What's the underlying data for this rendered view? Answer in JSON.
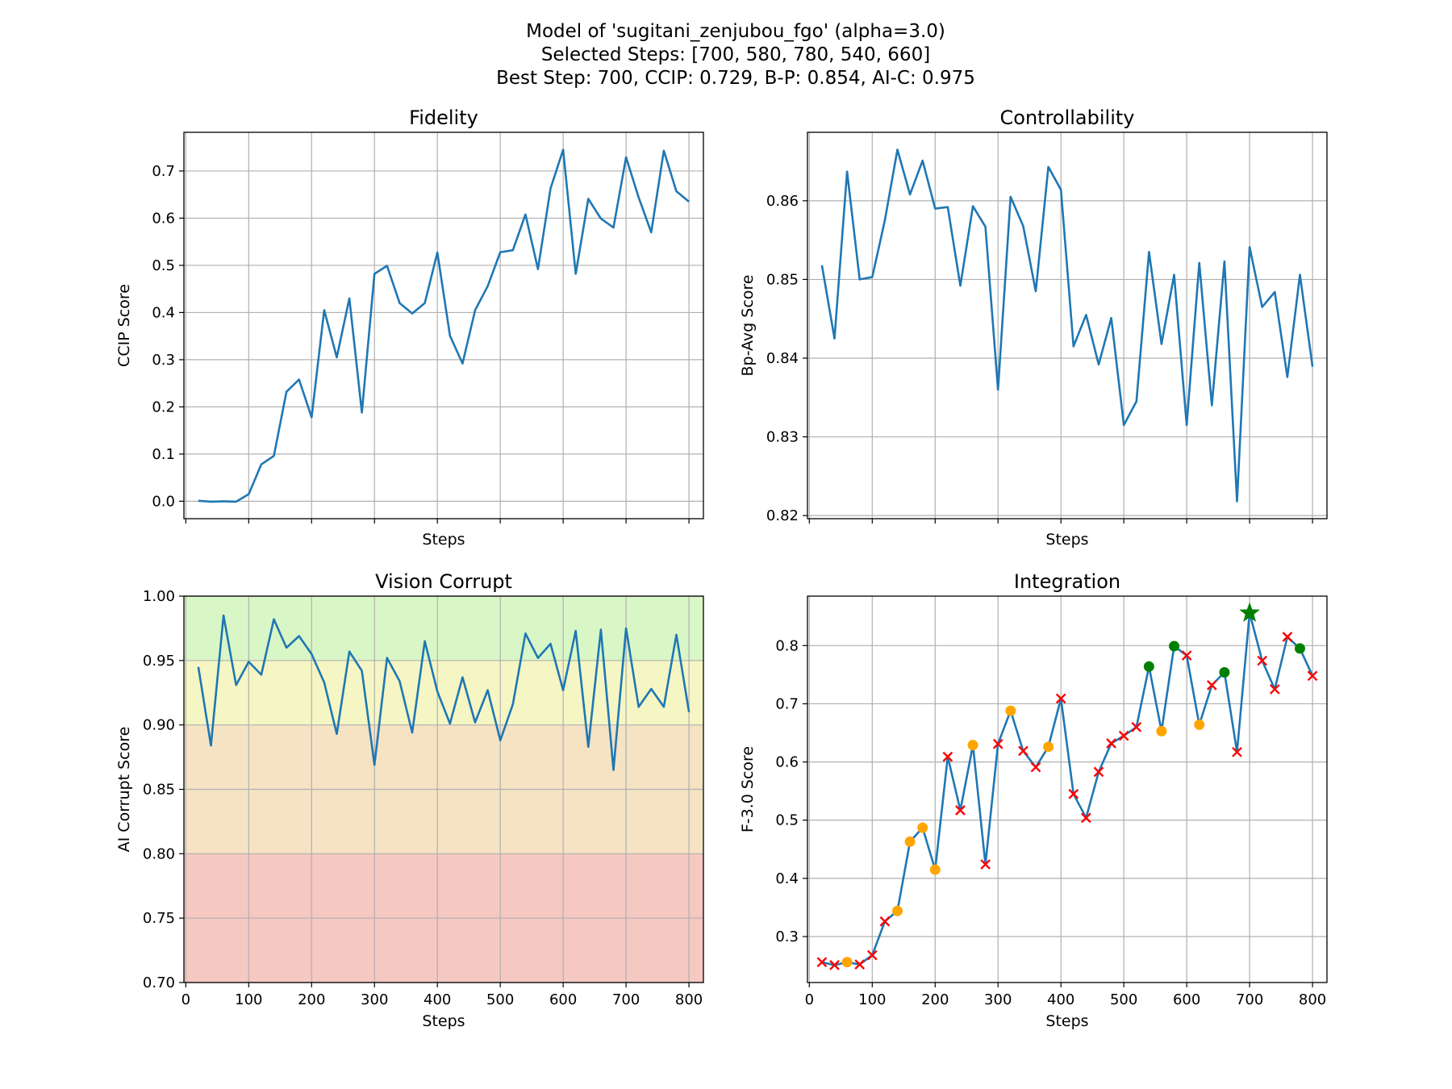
{
  "figure": {
    "title_lines": [
      "Model of 'sugitani_zenjubou_fgo' (alpha=3.0)",
      "Selected Steps: [700, 580, 780, 540, 660]",
      "Best Step: 700, CCIP: 0.729, B-P: 0.854, AI-C: 0.975"
    ]
  },
  "colors": {
    "line": "#1f77b4",
    "grid": "#b0b0b0",
    "band_green": "#d9f7c6",
    "band_yellow": "#f5f6c3",
    "band_orange": "#f5e3c4",
    "band_red": "#f5c8c2",
    "marker_selected": "#008000",
    "marker_candidate": "#ffa500",
    "marker_rejected": "#ff0000",
    "marker_best": "#008000"
  },
  "chart_data": [
    {
      "id": "fidelity",
      "type": "line",
      "title": "Fidelity",
      "xlabel": "Steps",
      "ylabel": "CCIP Score",
      "xlim": [
        -3,
        823
      ],
      "ylim": [
        -0.037,
        0.782
      ],
      "xticks": [
        0,
        100,
        200,
        300,
        400,
        500,
        600,
        700,
        800
      ],
      "xticklabels_visible": false,
      "yticks": [
        0.0,
        0.1,
        0.2,
        0.3,
        0.4,
        0.5,
        0.6,
        0.7
      ],
      "ytick_labels": [
        "0.0",
        "0.1",
        "0.2",
        "0.3",
        "0.4",
        "0.5",
        "0.6",
        "0.7"
      ],
      "grid": true,
      "x": [
        20,
        40,
        60,
        80,
        100,
        120,
        140,
        160,
        180,
        200,
        220,
        240,
        260,
        280,
        300,
        320,
        340,
        360,
        380,
        400,
        420,
        440,
        460,
        480,
        500,
        520,
        540,
        560,
        580,
        600,
        620,
        640,
        660,
        680,
        700,
        720,
        740,
        760,
        780,
        800
      ],
      "y": [
        0.001,
        -0.001,
        0.0,
        -0.001,
        0.015,
        0.078,
        0.096,
        0.232,
        0.258,
        0.178,
        0.405,
        0.305,
        0.43,
        0.188,
        0.482,
        0.499,
        0.42,
        0.398,
        0.42,
        0.527,
        0.351,
        0.292,
        0.405,
        0.456,
        0.528,
        0.532,
        0.608,
        0.492,
        0.663,
        0.745,
        0.482,
        0.641,
        0.599,
        0.58,
        0.729,
        0.644,
        0.57,
        0.743,
        0.657,
        0.635
      ]
    },
    {
      "id": "controllability",
      "type": "line",
      "title": "Controllability",
      "xlabel": "Steps",
      "ylabel": "Bp-Avg Score",
      "xlim": [
        -3,
        823
      ],
      "ylim": [
        0.8196,
        0.8687
      ],
      "xticks": [
        0,
        100,
        200,
        300,
        400,
        500,
        600,
        700,
        800
      ],
      "xticklabels_visible": false,
      "yticks": [
        0.82,
        0.83,
        0.84,
        0.85,
        0.86
      ],
      "ytick_labels": [
        "0.82",
        "0.83",
        "0.84",
        "0.85",
        "0.86"
      ],
      "grid": true,
      "x": [
        20,
        40,
        60,
        80,
        100,
        120,
        140,
        160,
        180,
        200,
        220,
        240,
        260,
        280,
        300,
        320,
        340,
        360,
        380,
        400,
        420,
        440,
        460,
        480,
        500,
        520,
        540,
        560,
        580,
        600,
        620,
        640,
        660,
        680,
        700,
        720,
        740,
        760,
        780,
        800
      ],
      "y": [
        0.8518,
        0.8425,
        0.8637,
        0.85,
        0.8503,
        0.8575,
        0.8665,
        0.8608,
        0.8651,
        0.859,
        0.8592,
        0.8492,
        0.8593,
        0.8567,
        0.836,
        0.8605,
        0.8568,
        0.8485,
        0.8643,
        0.8614,
        0.8415,
        0.8455,
        0.8392,
        0.8451,
        0.8315,
        0.8345,
        0.8535,
        0.8418,
        0.8506,
        0.8315,
        0.8521,
        0.834,
        0.8523,
        0.8218,
        0.8541,
        0.8465,
        0.8484,
        0.8376,
        0.8506,
        0.8389
      ]
    },
    {
      "id": "vision_corrupt",
      "type": "line",
      "title": "Vision Corrupt",
      "xlabel": "Steps",
      "ylabel": "AI Corrupt Score",
      "xlim": [
        -3,
        823
      ],
      "ylim": [
        0.7,
        1.0
      ],
      "xticks": [
        0,
        100,
        200,
        300,
        400,
        500,
        600,
        700,
        800
      ],
      "xtick_labels": [
        "0",
        "100",
        "200",
        "300",
        "400",
        "500",
        "600",
        "700",
        "800"
      ],
      "yticks": [
        0.7,
        0.75,
        0.8,
        0.85,
        0.9,
        0.95,
        1.0
      ],
      "ytick_labels": [
        "0.70",
        "0.75",
        "0.80",
        "0.85",
        "0.90",
        "0.95",
        "1.00"
      ],
      "grid": true,
      "bands": [
        {
          "from": 0.95,
          "to": 1.0,
          "color": "band_green"
        },
        {
          "from": 0.9,
          "to": 0.95,
          "color": "band_yellow"
        },
        {
          "from": 0.8,
          "to": 0.9,
          "color": "band_orange"
        },
        {
          "from": 0.7,
          "to": 0.8,
          "color": "band_red"
        }
      ],
      "x": [
        20,
        40,
        60,
        80,
        100,
        120,
        140,
        160,
        180,
        200,
        220,
        240,
        260,
        280,
        300,
        320,
        340,
        360,
        380,
        400,
        420,
        440,
        460,
        480,
        500,
        520,
        540,
        560,
        580,
        600,
        620,
        640,
        660,
        680,
        700,
        720,
        740,
        760,
        780,
        800
      ],
      "y": [
        0.945,
        0.884,
        0.985,
        0.931,
        0.949,
        0.939,
        0.982,
        0.96,
        0.969,
        0.955,
        0.933,
        0.893,
        0.957,
        0.942,
        0.869,
        0.952,
        0.934,
        0.894,
        0.965,
        0.926,
        0.901,
        0.937,
        0.902,
        0.927,
        0.888,
        0.916,
        0.971,
        0.952,
        0.963,
        0.927,
        0.973,
        0.883,
        0.974,
        0.865,
        0.975,
        0.914,
        0.928,
        0.914,
        0.97,
        0.91
      ]
    },
    {
      "id": "integration",
      "type": "line",
      "title": "Integration",
      "xlabel": "Steps",
      "ylabel": "F-3.0 Score",
      "xlim": [
        -3,
        823
      ],
      "ylim": [
        0.221,
        0.885
      ],
      "xticks": [
        0,
        100,
        200,
        300,
        400,
        500,
        600,
        700,
        800
      ],
      "xtick_labels": [
        "0",
        "100",
        "200",
        "300",
        "400",
        "500",
        "600",
        "700",
        "800"
      ],
      "yticks": [
        0.3,
        0.4,
        0.5,
        0.6,
        0.7,
        0.8
      ],
      "ytick_labels": [
        "0.3",
        "0.4",
        "0.5",
        "0.6",
        "0.7",
        "0.8"
      ],
      "grid": true,
      "x": [
        20,
        40,
        60,
        80,
        100,
        120,
        140,
        160,
        180,
        200,
        220,
        240,
        260,
        280,
        300,
        320,
        340,
        360,
        380,
        400,
        420,
        440,
        460,
        480,
        500,
        520,
        540,
        560,
        580,
        600,
        620,
        640,
        660,
        680,
        700,
        720,
        740,
        760,
        780,
        800
      ],
      "y": [
        0.256,
        0.251,
        0.256,
        0.252,
        0.268,
        0.326,
        0.344,
        0.463,
        0.487,
        0.415,
        0.609,
        0.517,
        0.629,
        0.424,
        0.631,
        0.688,
        0.619,
        0.591,
        0.626,
        0.709,
        0.545,
        0.504,
        0.583,
        0.632,
        0.645,
        0.66,
        0.764,
        0.653,
        0.799,
        0.783,
        0.664,
        0.732,
        0.754,
        0.617,
        0.856,
        0.774,
        0.725,
        0.815,
        0.795,
        0.748
      ],
      "markers": [
        "x",
        "x",
        "o",
        "x",
        "x",
        "x",
        "o",
        "o",
        "o",
        "o",
        "x",
        "x",
        "o",
        "x",
        "x",
        "o",
        "x",
        "x",
        "o",
        "x",
        "x",
        "x",
        "x",
        "x",
        "x",
        "x",
        "s",
        "o",
        "s",
        "x",
        "o",
        "x",
        "s",
        "x",
        "best",
        "x",
        "x",
        "x",
        "s",
        "x"
      ]
    }
  ]
}
